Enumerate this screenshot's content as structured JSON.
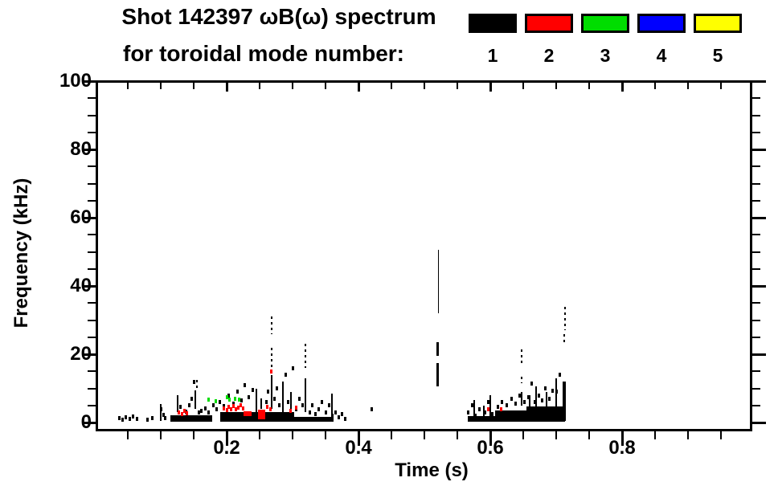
{
  "title": {
    "line1": "Shot 142397 ωB(ω) spectrum",
    "line2": "for toroidal mode number:"
  },
  "legend": {
    "position": "top-right",
    "entries": [
      {
        "label": "1",
        "color": "#000000"
      },
      {
        "label": "2",
        "color": "#ff0000"
      },
      {
        "label": "3",
        "color": "#00dd00"
      },
      {
        "label": "4",
        "color": "#0000ff"
      },
      {
        "label": "5",
        "color": "#ffff00"
      }
    ]
  },
  "axes": {
    "x": {
      "label": "Time (s)",
      "range": [
        0.0,
        1.0
      ],
      "major_ticks": [
        {
          "v": 0.2,
          "label": "0.2"
        },
        {
          "v": 0.4,
          "label": "0.4"
        },
        {
          "v": 0.6,
          "label": "0.6"
        },
        {
          "v": 0.8,
          "label": "0.8"
        }
      ],
      "minor_step": 0.05
    },
    "y": {
      "label": "Frequency (kHz)",
      "range": [
        0,
        100
      ],
      "major_ticks": [
        {
          "v": 0,
          "label": "0"
        },
        {
          "v": 20,
          "label": "20"
        },
        {
          "v": 40,
          "label": "40"
        },
        {
          "v": 60,
          "label": "60"
        },
        {
          "v": 80,
          "label": "80"
        },
        {
          "v": 100,
          "label": "100"
        }
      ],
      "minor_step": 5
    }
  },
  "chart_data": {
    "type": "scatter",
    "title": "Shot 142397 ωB(ω) spectrum for toroidal mode number: 1–5",
    "xlabel": "Time (s)",
    "ylabel": "Frequency (kHz)",
    "xlim": [
      0.0,
      1.0
    ],
    "ylim": [
      0,
      100
    ],
    "grid": false,
    "units_note": "bands=[t_start,t_end,f_low,f_high] (s,kHz); streaks=[t,f_low,f_high,dashed,px_width]; points=[t,f]",
    "series": [
      {
        "name": "n=1",
        "mode": 1,
        "color": "#000000",
        "bands": [
          [
            0.115,
            0.178,
            0.2,
            2.2
          ],
          [
            0.19,
            0.302,
            0.2,
            3.0
          ],
          [
            0.302,
            0.362,
            0.2,
            1.6
          ],
          [
            0.566,
            0.607,
            0.2,
            1.8
          ],
          [
            0.607,
            0.662,
            0.2,
            3.6
          ],
          [
            0.655,
            0.713,
            0.3,
            4.8
          ]
        ],
        "streaks": [
          [
            0.1,
            0.5,
            5.5,
            0,
            2
          ],
          [
            0.125,
            3.0,
            8.0,
            0,
            2
          ],
          [
            0.152,
            4.0,
            9.5,
            0,
            2
          ],
          [
            0.155,
            10.0,
            12.5,
            1,
            2
          ],
          [
            0.245,
            3.0,
            10.0,
            0,
            2
          ],
          [
            0.253,
            4.0,
            7.0,
            0,
            2
          ],
          [
            0.268,
            4.0,
            14.0,
            0,
            2
          ],
          [
            0.268,
            16.0,
            22.0,
            1,
            2
          ],
          [
            0.268,
            26.0,
            31.0,
            1,
            2
          ],
          [
            0.285,
            3.0,
            12.0,
            0,
            2
          ],
          [
            0.297,
            4.0,
            9.0,
            0,
            2
          ],
          [
            0.32,
            3.0,
            13.0,
            0,
            2
          ],
          [
            0.32,
            16.0,
            23.0,
            1,
            2
          ],
          [
            0.36,
            2.0,
            8.5,
            0,
            2
          ],
          [
            0.52,
            10.5,
            17.5,
            0,
            3
          ],
          [
            0.52,
            19.5,
            23.5,
            0,
            3
          ],
          [
            0.521,
            32.0,
            50.5,
            0,
            1
          ],
          [
            0.575,
            1.0,
            6.5,
            0,
            2
          ],
          [
            0.59,
            1.0,
            5.0,
            0,
            2
          ],
          [
            0.6,
            1.0,
            8.0,
            0,
            2
          ],
          [
            0.648,
            5.0,
            9.0,
            0,
            2
          ],
          [
            0.648,
            11.5,
            13.5,
            1,
            2
          ],
          [
            0.648,
            17.5,
            21.5,
            1,
            2
          ],
          [
            0.66,
            1.0,
            8.0,
            0,
            2
          ],
          [
            0.67,
            1.0,
            10.5,
            0,
            2
          ],
          [
            0.685,
            1.0,
            9.0,
            0,
            2
          ],
          [
            0.7,
            1.0,
            13.0,
            0,
            2
          ],
          [
            0.712,
            0.5,
            12.0,
            0,
            4
          ],
          [
            0.712,
            22.5,
            26.0,
            1,
            2
          ],
          [
            0.713,
            27.0,
            34.0,
            1,
            2
          ]
        ],
        "points": [
          [
            0.037,
            1.2
          ],
          [
            0.042,
            0.8
          ],
          [
            0.047,
            1.6
          ],
          [
            0.053,
            1.0
          ],
          [
            0.058,
            1.8
          ],
          [
            0.064,
            1.0
          ],
          [
            0.08,
            0.8
          ],
          [
            0.087,
            1.2
          ],
          [
            0.1,
            3.8
          ],
          [
            0.104,
            2.2
          ],
          [
            0.107,
            1.4
          ],
          [
            0.13,
            4.5
          ],
          [
            0.138,
            3.2
          ],
          [
            0.143,
            5.0
          ],
          [
            0.147,
            7.0
          ],
          [
            0.15,
            11.8
          ],
          [
            0.158,
            3.0
          ],
          [
            0.162,
            3.5
          ],
          [
            0.168,
            4.2
          ],
          [
            0.173,
            3.0
          ],
          [
            0.18,
            5.0
          ],
          [
            0.185,
            3.8
          ],
          [
            0.19,
            6.0
          ],
          [
            0.196,
            4.8
          ],
          [
            0.203,
            8.0
          ],
          [
            0.21,
            5.5
          ],
          [
            0.216,
            9.0
          ],
          [
            0.222,
            6.5
          ],
          [
            0.228,
            11.0
          ],
          [
            0.234,
            7.5
          ],
          [
            0.24,
            9.5
          ],
          [
            0.26,
            6.0
          ],
          [
            0.263,
            9.0
          ],
          [
            0.272,
            7.0
          ],
          [
            0.276,
            10.0
          ],
          [
            0.28,
            5.0
          ],
          [
            0.29,
            14.0
          ],
          [
            0.293,
            6.0
          ],
          [
            0.3,
            16.0
          ],
          [
            0.305,
            4.0
          ],
          [
            0.31,
            7.0
          ],
          [
            0.315,
            5.0
          ],
          [
            0.326,
            3.0
          ],
          [
            0.33,
            5.0
          ],
          [
            0.335,
            2.5
          ],
          [
            0.34,
            4.0
          ],
          [
            0.345,
            6.0
          ],
          [
            0.35,
            3.0
          ],
          [
            0.355,
            5.0
          ],
          [
            0.36,
            2.0
          ],
          [
            0.365,
            3.0
          ],
          [
            0.37,
            1.5
          ],
          [
            0.375,
            2.5
          ],
          [
            0.38,
            1.0
          ],
          [
            0.42,
            3.8
          ],
          [
            0.567,
            3.0
          ],
          [
            0.572,
            5.0
          ],
          [
            0.578,
            2.0
          ],
          [
            0.583,
            4.0
          ],
          [
            0.592,
            3.0
          ],
          [
            0.597,
            6.0
          ],
          [
            0.603,
            2.5
          ],
          [
            0.612,
            4.5
          ],
          [
            0.618,
            6.0
          ],
          [
            0.625,
            5.0
          ],
          [
            0.632,
            7.0
          ],
          [
            0.638,
            5.5
          ],
          [
            0.644,
            8.0
          ],
          [
            0.652,
            6.0
          ],
          [
            0.658,
            7.5
          ],
          [
            0.663,
            11.5
          ],
          [
            0.668,
            6.0
          ],
          [
            0.674,
            8.0
          ],
          [
            0.679,
            6.5
          ],
          [
            0.684,
            10.0
          ],
          [
            0.69,
            7.0
          ],
          [
            0.695,
            9.3
          ],
          [
            0.7,
            9.0
          ],
          [
            0.706,
            14.0
          ]
        ]
      },
      {
        "name": "n=2",
        "mode": 2,
        "color": "#ff0000",
        "bands": [
          [
            0.2475,
            0.259,
            1.0,
            3.8
          ],
          [
            0.226,
            0.2375,
            1.8,
            3.4
          ]
        ],
        "streaks": [],
        "points": [
          [
            0.128,
            3.0
          ],
          [
            0.132,
            2.4
          ],
          [
            0.136,
            3.4
          ],
          [
            0.14,
            2.8
          ],
          [
            0.196,
            4.2
          ],
          [
            0.2,
            3.7
          ],
          [
            0.2035,
            4.5
          ],
          [
            0.207,
            4.0
          ],
          [
            0.2105,
            4.8
          ],
          [
            0.214,
            3.8
          ],
          [
            0.2175,
            4.4
          ],
          [
            0.221,
            5.0
          ],
          [
            0.2245,
            4.1
          ],
          [
            0.262,
            4.6
          ],
          [
            0.266,
            4.0
          ],
          [
            0.297,
            3.4
          ],
          [
            0.305,
            4.4
          ],
          [
            0.268,
            15.0
          ],
          [
            0.597,
            3.8
          ],
          [
            0.616,
            3.9
          ]
        ]
      },
      {
        "name": "n=3",
        "mode": 3,
        "color": "#00dd00",
        "bands": [],
        "streaks": [],
        "points": [
          [
            0.173,
            6.8
          ],
          [
            0.183,
            6.2
          ],
          [
            0.201,
            7.4
          ],
          [
            0.204,
            6.6
          ],
          [
            0.213,
            7.0
          ],
          [
            0.219,
            6.6
          ]
        ]
      },
      {
        "name": "n=4",
        "mode": 4,
        "color": "#0000ff",
        "bands": [],
        "streaks": [],
        "points": []
      },
      {
        "name": "n=5",
        "mode": 5,
        "color": "#ffff00",
        "bands": [],
        "streaks": [],
        "points": []
      }
    ]
  }
}
